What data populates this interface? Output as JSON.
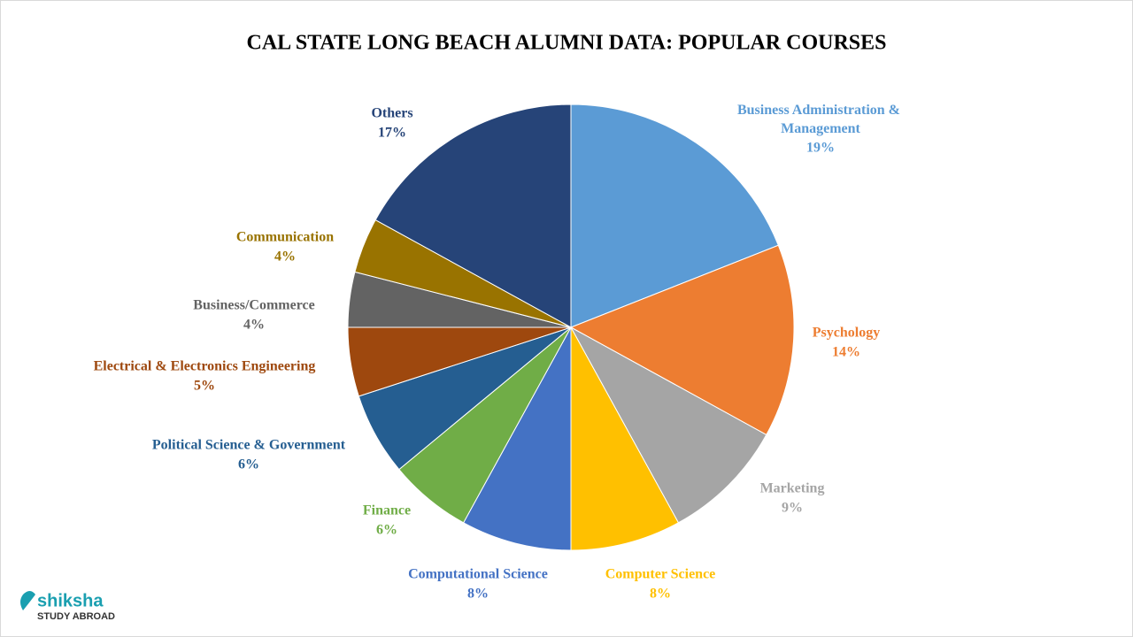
{
  "chart_data": {
    "type": "pie",
    "title": "CAL STATE LONG BEACH ALUMNI DATA: POPULAR COURSES",
    "categories": [
      "Business Administration & Management",
      "Psychology",
      "Marketing",
      "Computer Science",
      "Computational Science",
      "Finance",
      "Political Science & Government",
      "Electrical & Electronics Engineering",
      "Business/Commerce",
      "Communication",
      "Others"
    ],
    "values": [
      19,
      14,
      9,
      8,
      8,
      6,
      6,
      5,
      4,
      4,
      17
    ],
    "value_labels": [
      "19%",
      "14%",
      "9%",
      "8%",
      "8%",
      "6%",
      "6%",
      "5%",
      "4%",
      "4%",
      "17%"
    ],
    "colors": [
      "#5b9bd5",
      "#ed7d31",
      "#a5a5a5",
      "#ffc000",
      "#4472c4",
      "#70ad47",
      "#255e91",
      "#9e480e",
      "#636363",
      "#997300",
      "#264478"
    ]
  },
  "logo": {
    "name": "shiksha",
    "tagline": "STUDY ABROAD"
  }
}
